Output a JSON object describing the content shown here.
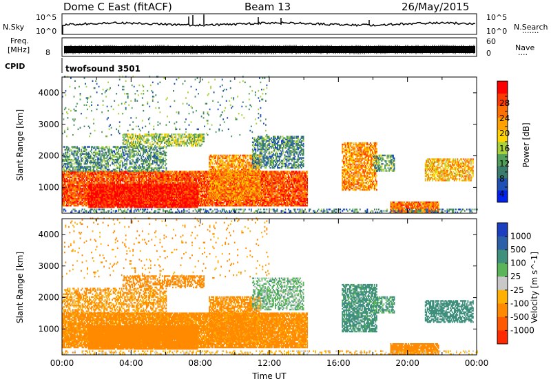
{
  "header": {
    "station": "Dome C East (fitACF)",
    "beam": "Beam 13",
    "date": "26/May/2015"
  },
  "top_panels": {
    "nsky_label": "N.Sky",
    "nsearch_label": "N.Search",
    "nsky_ticks": [
      "10^5",
      "10^0"
    ],
    "nsearch_ticks": [
      "10^5",
      "10^0"
    ],
    "freq_label_1": "Freq.",
    "freq_label_2": "[MHz]",
    "freq_ticks": [
      "8"
    ],
    "nave_label": "Nave",
    "nave_ticks": [
      "60",
      "0"
    ],
    "cpid_label": "CPID",
    "cpid_value": "twofsound 3501"
  },
  "colors": {
    "power": [
      "#0022ee",
      "#1f50b3",
      "#3a7c6d",
      "#52a05a",
      "#a8d23c",
      "#ffd400",
      "#ffa200",
      "#ff7000",
      "#ff3a00",
      "#ff0000"
    ],
    "velocity": [
      "#1b3fbf",
      "#2b5fa8",
      "#3f8f7d",
      "#5ab55a",
      "#c8c8c8",
      "#ffb000",
      "#ff8a00",
      "#ff5a00",
      "#ff2a00"
    ]
  },
  "chart_data": [
    {
      "type": "heatmap",
      "name": "power",
      "xlabel": "",
      "ylabel": "Slant Range [km]",
      "xlim": [
        0,
        24
      ],
      "ylim": [
        180,
        4500
      ],
      "yticks": [
        1000,
        2000,
        3000,
        4000
      ],
      "colorbar": {
        "label": "Power [dB]",
        "ticks": [
          4,
          8,
          12,
          16,
          20,
          24,
          28
        ],
        "range": [
          0,
          32
        ]
      },
      "blobs": [
        {
          "t0": 0.0,
          "t1": 14.2,
          "r0": 400,
          "r1": 1500,
          "v": 26,
          "d": 0.9
        },
        {
          "t0": 1.5,
          "t1": 7.8,
          "r0": 350,
          "r1": 1100,
          "v": 30,
          "d": 0.95
        },
        {
          "t0": 0.0,
          "t1": 6.0,
          "r0": 1500,
          "r1": 2300,
          "v": 10,
          "d": 0.55
        },
        {
          "t0": 3.5,
          "t1": 8.2,
          "r0": 2300,
          "r1": 2700,
          "v": 14,
          "d": 0.6
        },
        {
          "t0": 8.5,
          "t1": 11.5,
          "r0": 600,
          "r1": 2000,
          "v": 22,
          "d": 0.7
        },
        {
          "t0": 11.0,
          "t1": 14.0,
          "r0": 1600,
          "r1": 2600,
          "v": 9,
          "d": 0.6
        },
        {
          "t0": 16.2,
          "t1": 18.2,
          "r0": 900,
          "r1": 2400,
          "v": 22,
          "d": 0.7
        },
        {
          "t0": 18.0,
          "t1": 19.2,
          "r0": 1500,
          "r1": 2000,
          "v": 11,
          "d": 0.55
        },
        {
          "t0": 21.0,
          "t1": 23.8,
          "r0": 1200,
          "r1": 1900,
          "v": 20,
          "d": 0.65
        },
        {
          "t0": 19.0,
          "t1": 21.8,
          "r0": 190,
          "r1": 550,
          "v": 24,
          "d": 0.9
        },
        {
          "t0": 0.0,
          "t1": 24.0,
          "r0": 190,
          "r1": 300,
          "v": 8,
          "d": 0.35
        },
        {
          "t0": 0.0,
          "t1": 12.0,
          "r0": 2600,
          "r1": 4500,
          "v": 10,
          "d": 0.04
        }
      ]
    },
    {
      "type": "heatmap",
      "name": "velocity",
      "xlabel": "Time UT",
      "ylabel": "Slant Range [km]",
      "xlim": [
        0,
        24
      ],
      "ylim": [
        180,
        4500
      ],
      "xticks": [
        "00:00",
        "04:00",
        "08:00",
        "12:00",
        "16:00",
        "20:00",
        "00:00"
      ],
      "yticks": [
        1000,
        2000,
        3000,
        4000
      ],
      "colorbar": {
        "label": "Velocity [m s^-1]",
        "ticks": [
          1000,
          500,
          100,
          25,
          -25,
          -100,
          -500,
          -1000
        ]
      },
      "blobs": [
        {
          "t0": 0.0,
          "t1": 14.2,
          "r0": 400,
          "r1": 1500,
          "v": -150,
          "d": 0.9
        },
        {
          "t0": 1.5,
          "t1": 7.8,
          "r0": 350,
          "r1": 1100,
          "v": -200,
          "d": 0.95
        },
        {
          "t0": 0.0,
          "t1": 6.0,
          "r0": 1500,
          "r1": 2300,
          "v": -120,
          "d": 0.5
        },
        {
          "t0": 3.5,
          "t1": 8.2,
          "r0": 2300,
          "r1": 2700,
          "v": -200,
          "d": 0.55
        },
        {
          "t0": 8.5,
          "t1": 11.5,
          "r0": 600,
          "r1": 2000,
          "v": -150,
          "d": 0.7
        },
        {
          "t0": 11.0,
          "t1": 14.0,
          "r0": 1600,
          "r1": 2600,
          "v": 60,
          "d": 0.5
        },
        {
          "t0": 16.2,
          "t1": 18.2,
          "r0": 900,
          "r1": 2400,
          "v": 150,
          "d": 0.7
        },
        {
          "t0": 18.0,
          "t1": 19.2,
          "r0": 1500,
          "r1": 2000,
          "v": 120,
          "d": 0.55
        },
        {
          "t0": 21.0,
          "t1": 23.8,
          "r0": 1200,
          "r1": 1900,
          "v": 200,
          "d": 0.65
        },
        {
          "t0": 19.0,
          "t1": 21.8,
          "r0": 190,
          "r1": 550,
          "v": -300,
          "d": 0.9
        },
        {
          "t0": 0.0,
          "t1": 24.0,
          "r0": 190,
          "r1": 300,
          "v": -60,
          "d": 0.3
        },
        {
          "t0": 0.0,
          "t1": 12.0,
          "r0": 2600,
          "r1": 4500,
          "v": -120,
          "d": 0.04
        }
      ]
    }
  ]
}
